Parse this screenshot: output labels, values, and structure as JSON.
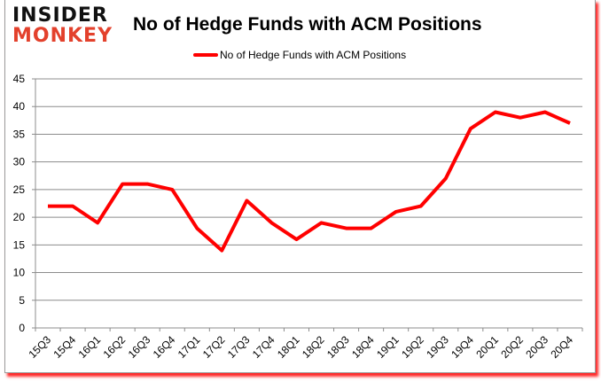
{
  "logo": {
    "line1": "INSIDER",
    "line2": "MONKEY"
  },
  "header": {
    "title": "No of Hedge Funds with ACM Positions"
  },
  "legend": {
    "label": "No of Hedge Funds with ACM Positions",
    "color": "#ff0000"
  },
  "chart_data": {
    "type": "line",
    "title": "No of Hedge Funds with ACM Positions",
    "xlabel": "",
    "ylabel": "",
    "ylim": [
      0,
      45
    ],
    "yticks": [
      0,
      5,
      10,
      15,
      20,
      25,
      30,
      35,
      40,
      45
    ],
    "grid": true,
    "legend_position": "top",
    "categories": [
      "15Q3",
      "15Q4",
      "16Q1",
      "16Q2",
      "16Q3",
      "16Q4",
      "17Q1",
      "17Q2",
      "17Q3",
      "17Q4",
      "18Q1",
      "18Q2",
      "18Q3",
      "18Q4",
      "19Q1",
      "19Q2",
      "19Q3",
      "19Q4",
      "20Q1",
      "20Q2",
      "20Q3",
      "20Q4"
    ],
    "series": [
      {
        "name": "No of Hedge Funds with ACM Positions",
        "color": "#ff0000",
        "values": [
          22,
          22,
          19,
          26,
          26,
          25,
          18,
          14,
          23,
          19,
          16,
          19,
          18,
          18,
          21,
          22,
          27,
          36,
          39,
          38,
          39,
          37
        ]
      }
    ]
  }
}
